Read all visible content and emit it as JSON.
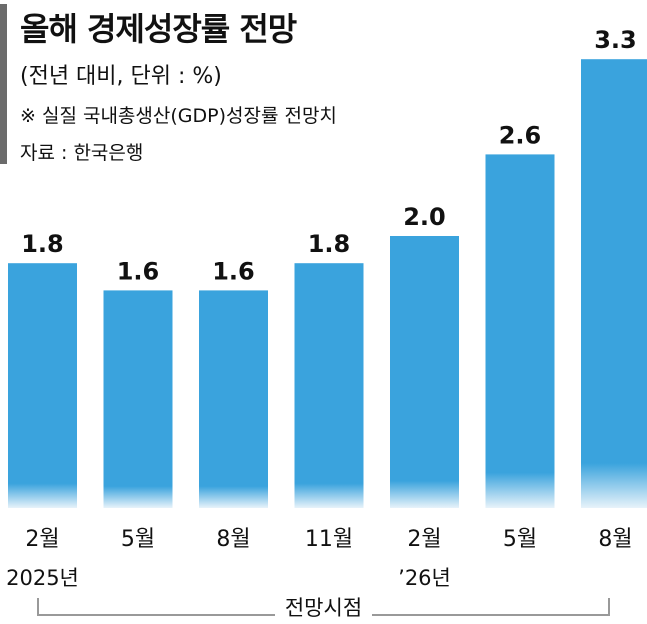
{
  "title": "올해 경제성장률 전망",
  "subtitle": "(전년 대비, 단위 : %)",
  "note": "※ 실질 국내총생산(GDP)성장률 전망치",
  "source": "자료 : 한국은행",
  "colors": {
    "bar": "#3aa3dd",
    "accent": "#6b6b6b"
  },
  "chart_data": {
    "type": "bar",
    "title": "올해 경제성장률 전망",
    "categories": [
      "2월",
      "5월",
      "8월",
      "11월",
      "2월",
      "5월",
      "8월"
    ],
    "year_labels": [
      "2025년",
      "",
      "",
      "",
      "’26년",
      "",
      ""
    ],
    "values": [
      1.8,
      1.6,
      1.6,
      1.8,
      2.0,
      2.6,
      3.3
    ],
    "value_labels": [
      "1.8",
      "1.6",
      "1.6",
      "1.8",
      "2.0",
      "2.6",
      "3.3"
    ],
    "xlabel": "전망시점",
    "ylabel": "",
    "grid": false
  }
}
